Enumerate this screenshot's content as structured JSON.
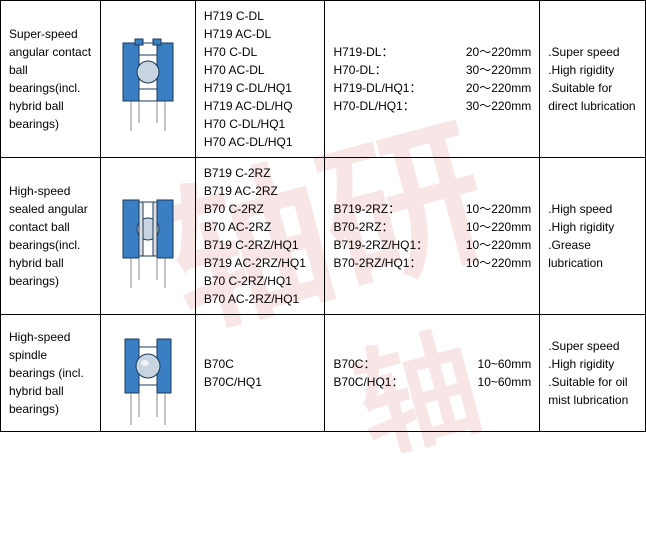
{
  "rows": [
    {
      "name": "Super-speed angular contact ball bearings(incl. hybrid ball bearings)",
      "series": [
        "H719 C-DL",
        "H719 AC-DL",
        "H70 C-DL",
        "H70 AC-DL",
        "H719 C-DL/HQ1",
        "H719 AC-DL/HQ",
        "H70 C-DL/HQ1",
        "H70 AC-DL/HQ1"
      ],
      "sizes": [
        {
          "k": "H719-DL：",
          "v": "20～220mm"
        },
        {
          "k": "H70-DL：",
          "v": "30～220mm"
        },
        {
          "k": "H719-DL/HQ1：",
          "v": "20～220mm"
        },
        {
          "k": "H70-DL/HQ1：",
          "v": "30～220mm"
        }
      ],
      "feat": [
        ".Super speed",
        ".High rigidity",
        ".Suitable for direct lubrication"
      ],
      "iconType": "angular"
    },
    {
      "name": "High-speed sealed angular contact ball bearings(incl. hybrid ball bearings)",
      "series": [
        "B719 C-2RZ",
        "B719 AC-2RZ",
        "B70 C-2RZ",
        "B70 AC-2RZ",
        "B719 C-2RZ/HQ1",
        "B719 AC-2RZ/HQ1",
        "B70 C-2RZ/HQ1",
        "B70 AC-2RZ/HQ1"
      ],
      "sizes": [
        {
          "k": "B719-2RZ：",
          "v": "10～220mm"
        },
        {
          "k": "B70-2RZ：",
          "v": "10～220mm"
        },
        {
          "k": "B719-2RZ/HQ1：",
          "v": "10～220mm"
        },
        {
          "k": "B70-2RZ/HQ1：",
          "v": "10～220mm"
        }
      ],
      "feat": [
        ".High speed",
        ".High rigidity",
        ".Grease lubrication"
      ],
      "iconType": "sealed"
    },
    {
      "name": "High-speed spindle bearings (incl. hybrid ball bearings)",
      "series": [
        "B70C",
        "B70C/HQ1"
      ],
      "sizes": [
        {
          "k": "B70C：",
          "v": "10~60mm"
        },
        {
          "k": "B70C/HQ1：",
          "v": "10~60mm"
        }
      ],
      "feat": [
        ".Super speed",
        ".High rigidity",
        ".Suitable for oil mist lubrication"
      ],
      "iconType": "spindle"
    }
  ],
  "colors": {
    "blue": "#3a7fc4",
    "ball": "#c8d4e0",
    "dark": "#1a3a5a"
  }
}
